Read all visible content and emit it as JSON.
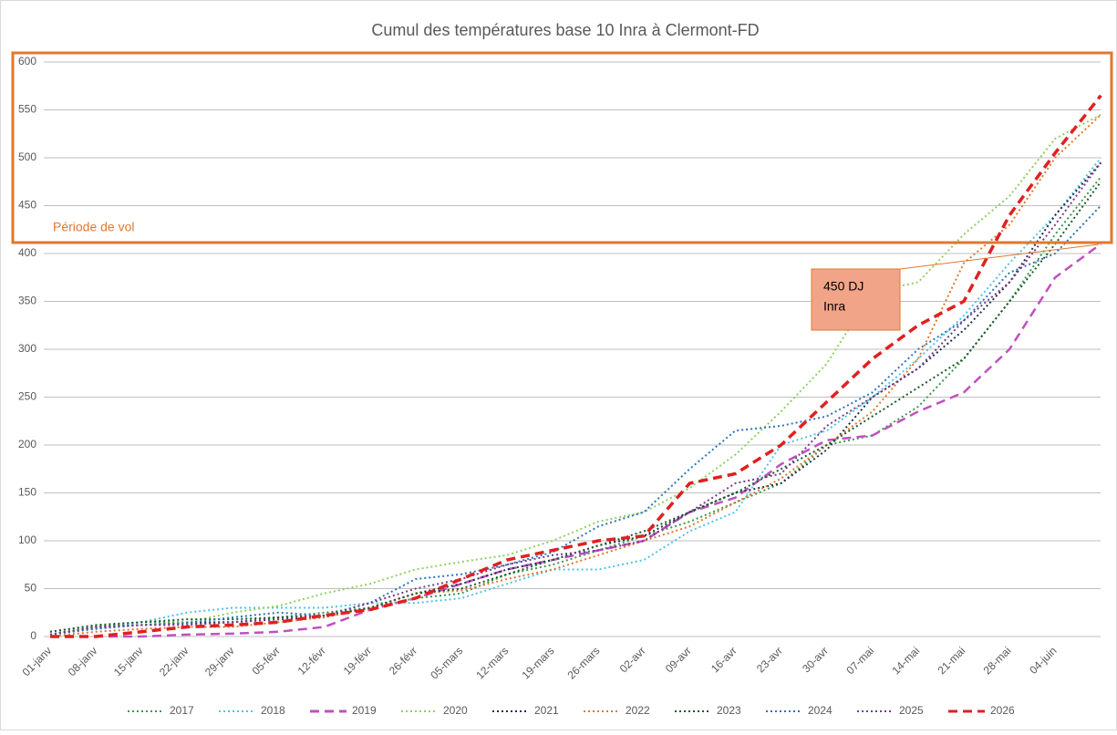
{
  "chart_data": {
    "type": "line",
    "title": "Cumul des températures base 10 Inra à Clermont-FD",
    "categories": [
      "01-janv",
      "08-janv",
      "15-janv",
      "22-janv",
      "29-janv",
      "05-févr",
      "12-févr",
      "19-févr",
      "26-févr",
      "05-mars",
      "12-mars",
      "19-mars",
      "26-mars",
      "02-avr",
      "09-avr",
      "16-avr",
      "23-avr",
      "30-avr",
      "07-mai",
      "14-mai",
      "21-mai",
      "28-mai",
      "04-juin",
      null
    ],
    "ylim": [
      0,
      600
    ],
    "yticks": [
      0,
      50,
      100,
      150,
      200,
      250,
      300,
      350,
      400,
      450,
      500,
      550,
      600
    ],
    "grid": true,
    "annotations": {
      "zone": "Période de vol",
      "callout": [
        "450 DJ",
        "Inra"
      ]
    },
    "series": [
      {
        "name": "2017",
        "color": "#3a9a4a",
        "dash": "dotted",
        "values": [
          2,
          10,
          15,
          15,
          15,
          20,
          25,
          30,
          40,
          45,
          65,
          75,
          90,
          105,
          120,
          140,
          160,
          200,
          210,
          240,
          290,
          350,
          420,
          480
        ]
      },
      {
        "name": "2018",
        "color": "#4fc3e8",
        "dash": "dotted",
        "values": [
          5,
          8,
          15,
          25,
          30,
          30,
          30,
          35,
          35,
          40,
          55,
          70,
          70,
          80,
          110,
          130,
          200,
          215,
          250,
          290,
          335,
          390,
          440,
          500
        ]
      },
      {
        "name": "2019",
        "color": "#c050c0",
        "dash": "dashed",
        "values": [
          0,
          0,
          0,
          2,
          3,
          5,
          10,
          28,
          40,
          55,
          70,
          80,
          90,
          100,
          130,
          145,
          180,
          205,
          210,
          235,
          255,
          300,
          375,
          410
        ]
      },
      {
        "name": "2020",
        "color": "#8fd060",
        "dash": "dotted",
        "values": [
          5,
          10,
          12,
          15,
          25,
          32,
          45,
          55,
          70,
          78,
          85,
          100,
          120,
          130,
          155,
          190,
          235,
          285,
          360,
          370,
          420,
          460,
          520,
          545
        ]
      },
      {
        "name": "2021",
        "color": "#203050",
        "dash": "dotted",
        "values": [
          2,
          10,
          12,
          14,
          15,
          18,
          20,
          30,
          45,
          55,
          70,
          80,
          95,
          105,
          130,
          150,
          160,
          195,
          250,
          280,
          320,
          370,
          440,
          495
        ]
      },
      {
        "name": "2022",
        "color": "#e07830",
        "dash": "dotted",
        "values": [
          0,
          5,
          8,
          10,
          10,
          15,
          20,
          30,
          45,
          48,
          60,
          70,
          85,
          100,
          115,
          140,
          165,
          200,
          235,
          290,
          390,
          430,
          500,
          545
        ]
      },
      {
        "name": "2023",
        "color": "#1a5a2a",
        "dash": "dotted",
        "values": [
          5,
          12,
          15,
          18,
          18,
          20,
          22,
          30,
          45,
          50,
          65,
          80,
          95,
          110,
          130,
          150,
          175,
          200,
          230,
          260,
          290,
          350,
          410,
          475
        ]
      },
      {
        "name": "2024",
        "color": "#2e75b6",
        "dash": "dotted",
        "values": [
          2,
          8,
          12,
          14,
          20,
          25,
          22,
          35,
          60,
          65,
          75,
          88,
          115,
          130,
          175,
          215,
          220,
          230,
          255,
          300,
          330,
          380,
          400,
          450
        ]
      },
      {
        "name": "2025",
        "color": "#7a3a8a",
        "dash": "dotted",
        "values": [
          2,
          10,
          12,
          12,
          15,
          18,
          22,
          35,
          50,
          60,
          75,
          85,
          90,
          100,
          130,
          160,
          170,
          220,
          250,
          280,
          330,
          370,
          430,
          495
        ]
      },
      {
        "name": "2026",
        "color": "#e02020",
        "dash": "dashed",
        "values": [
          0,
          0,
          5,
          10,
          12,
          15,
          22,
          28,
          40,
          60,
          80,
          90,
          100,
          105,
          160,
          170,
          200,
          245,
          290,
          325,
          350,
          440,
          505,
          565
        ]
      }
    ]
  }
}
